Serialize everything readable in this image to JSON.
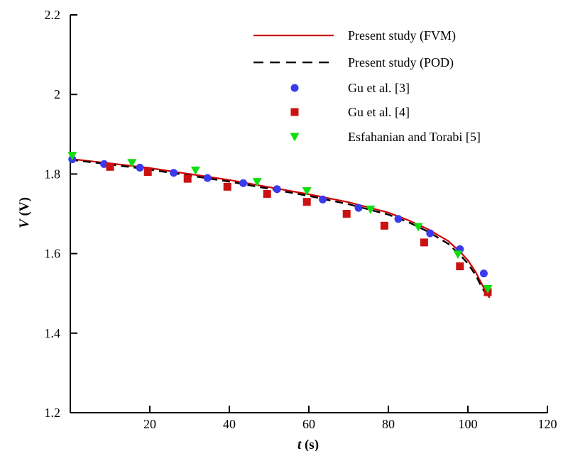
{
  "chart_data": {
    "type": "line",
    "xlabel_var": "t",
    "xlabel_unit": " (s)",
    "ylabel_var": "V",
    "ylabel_unit": " (V)",
    "xlim": [
      0,
      120
    ],
    "ylim": [
      1.2,
      2.2
    ],
    "xticks": [
      20,
      40,
      60,
      80,
      100,
      120
    ],
    "xtick_labels": [
      "20",
      "40",
      "60",
      "80",
      "100",
      "120"
    ],
    "yticks": [
      1.2,
      1.4,
      1.6,
      1.8,
      2.0,
      2.2
    ],
    "ytick_labels": [
      "1.2",
      "1.4",
      "1.6",
      "1.8",
      "2",
      "2.2"
    ],
    "grid": false,
    "legend_position": "top-right",
    "series": [
      {
        "name": "Present study (FVM)",
        "style": "solid-line",
        "color": "#cc0000",
        "x": [
          0,
          10,
          20,
          30,
          40,
          50,
          60,
          70,
          80,
          85,
          90,
          95,
          98,
          100,
          102,
          103,
          104,
          104.5,
          105,
          105.5
        ],
        "y": [
          1.838,
          1.827,
          1.815,
          1.8,
          1.785,
          1.767,
          1.749,
          1.729,
          1.703,
          1.684,
          1.661,
          1.632,
          1.605,
          1.583,
          1.553,
          1.533,
          1.514,
          1.504,
          1.495,
          1.489
        ]
      },
      {
        "name": "Present study (POD)",
        "style": "dashed-line",
        "color": "#000000",
        "x": [
          0,
          10,
          20,
          30,
          40,
          50,
          60,
          70,
          80,
          85,
          90,
          95,
          98,
          100,
          102,
          103,
          104,
          104.5
        ],
        "y": [
          1.836,
          1.824,
          1.811,
          1.796,
          1.781,
          1.763,
          1.745,
          1.724,
          1.698,
          1.679,
          1.655,
          1.625,
          1.597,
          1.575,
          1.545,
          1.525,
          1.507,
          1.498
        ]
      },
      {
        "name": "Gu et al. [3]",
        "style": "circle",
        "color": "#3a3aee",
        "x": [
          0.5,
          8.5,
          17.5,
          26,
          34.5,
          43.5,
          52,
          63.5,
          72.5,
          82.5,
          90.5,
          98,
          104
        ],
        "y": [
          1.837,
          1.825,
          1.816,
          1.803,
          1.79,
          1.777,
          1.762,
          1.736,
          1.715,
          1.687,
          1.651,
          1.611,
          1.55
        ]
      },
      {
        "name": "Gu et al. [4]",
        "style": "square",
        "color": "#cc1111",
        "x": [
          10,
          19.5,
          29.5,
          39.5,
          49.5,
          59.5,
          69.5,
          79,
          89,
          98,
          105
        ],
        "y": [
          1.818,
          1.805,
          1.788,
          1.768,
          1.75,
          1.73,
          1.7,
          1.67,
          1.628,
          1.568,
          1.503
        ]
      },
      {
        "name": "Esfahanian and Torabi [5]",
        "style": "triangle-down",
        "color": "#11dd11",
        "x": [
          0.5,
          15.5,
          31.5,
          47,
          59.5,
          75.5,
          87.5,
          97.5,
          105
        ],
        "y": [
          1.846,
          1.828,
          1.809,
          1.78,
          1.757,
          1.711,
          1.667,
          1.598,
          1.511
        ]
      }
    ]
  }
}
